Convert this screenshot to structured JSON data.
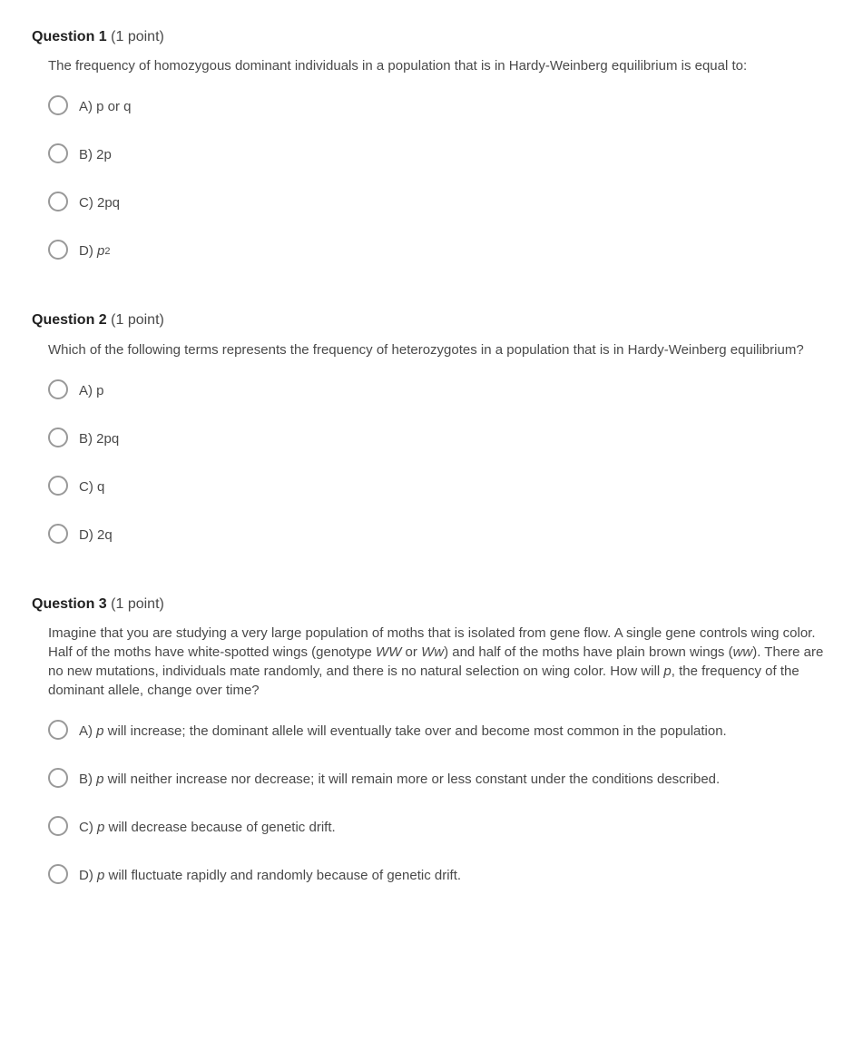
{
  "questions": [
    {
      "number": "Question 1",
      "points": "(1 point)",
      "prompt_html": "The frequency of homozygous dominant individuals in a population that is in Hardy-Weinberg equilibrium is equal to:",
      "options": [
        {
          "label_html": "A) p or q"
        },
        {
          "label_html": "B) 2p"
        },
        {
          "label_html": "C) 2pq"
        },
        {
          "label_html": "D) <span class='italic'>p</span><span class='sup'>2</span>"
        }
      ]
    },
    {
      "number": "Question 2",
      "points": "(1 point)",
      "prompt_html": "Which of the following terms represents the frequency of heterozygotes in a population that is in Hardy-Weinberg equilibrium?",
      "options": [
        {
          "label_html": "A) p"
        },
        {
          "label_html": "B) 2pq"
        },
        {
          "label_html": "C) q"
        },
        {
          "label_html": "D) 2q"
        }
      ]
    },
    {
      "number": "Question 3",
      "points": "(1 point)",
      "prompt_html": "Imagine that you are studying a very large population of moths that is isolated from gene flow. A single gene controls wing color. Half of the moths have white-spotted wings (genotype <span class='italic'>WW</span> or <span class='italic'>Ww</span>) and half of the moths have plain brown wings (<span class='italic'>ww</span>). There are no new mutations, individuals mate randomly, and there is no natural selection on wing color. How will <span class='italic'>p</span>, the frequency of the dominant allele, change over time?",
      "options": [
        {
          "label_html": "<span class='indent-wrap'>A) <span class='italic'>p</span> will increase; the dominant allele will eventually take over and become most common in the population.</span>"
        },
        {
          "label_html": "<span class='indent-wrap'>B) <span class='italic'>p</span> will neither increase nor decrease; it will remain more or less constant under the conditions described.</span>"
        },
        {
          "label_html": "C) <span class='italic'>p</span> will decrease because of genetic drift."
        },
        {
          "label_html": "D) <span class='italic'>p</span> will fluctuate rapidly and randomly because of genetic drift."
        }
      ]
    }
  ],
  "colors": {
    "background": "#ffffff",
    "heading_text": "#212121",
    "body_text": "#494949",
    "radio_border": "#999999"
  }
}
